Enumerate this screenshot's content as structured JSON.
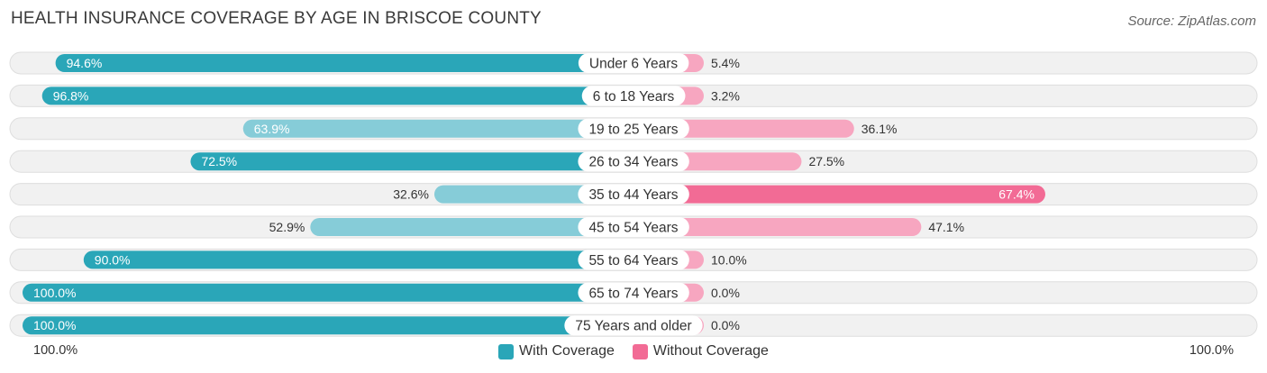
{
  "header": {
    "title": "HEALTH INSURANCE COVERAGE BY AGE IN BRISCOE COUNTY",
    "source": "Source: ZipAtlas.com"
  },
  "colors": {
    "with_dark": "#2aa6b8",
    "with_light": "#86ccd8",
    "without_dark": "#f26b95",
    "without_light": "#f7a6c0"
  },
  "chart_data": {
    "type": "bar",
    "orientation": "horizontal-diverging",
    "categories": [
      "Under 6 Years",
      "6 to 18 Years",
      "19 to 25 Years",
      "26 to 34 Years",
      "35 to 44 Years",
      "45 to 54 Years",
      "55 to 64 Years",
      "65 to 74 Years",
      "75 Years and older"
    ],
    "series": [
      {
        "name": "With Coverage",
        "values": [
          94.6,
          96.8,
          63.9,
          72.5,
          32.6,
          52.9,
          90.0,
          100.0,
          100.0
        ],
        "labels": [
          "94.6%",
          "96.8%",
          "63.9%",
          "72.5%",
          "32.6%",
          "52.9%",
          "90.0%",
          "100.0%",
          "100.0%"
        ]
      },
      {
        "name": "Without Coverage",
        "values": [
          5.4,
          3.2,
          36.1,
          27.5,
          67.4,
          47.1,
          10.0,
          0.0,
          0.0
        ],
        "labels": [
          "5.4%",
          "3.2%",
          "36.1%",
          "27.5%",
          "67.4%",
          "47.1%",
          "10.0%",
          "0.0%",
          "0.0%"
        ]
      }
    ],
    "xlim": [
      -100,
      100
    ],
    "axis_left_label": "100.0%",
    "axis_right_label": "100.0%",
    "legend_position": "bottom-center"
  }
}
